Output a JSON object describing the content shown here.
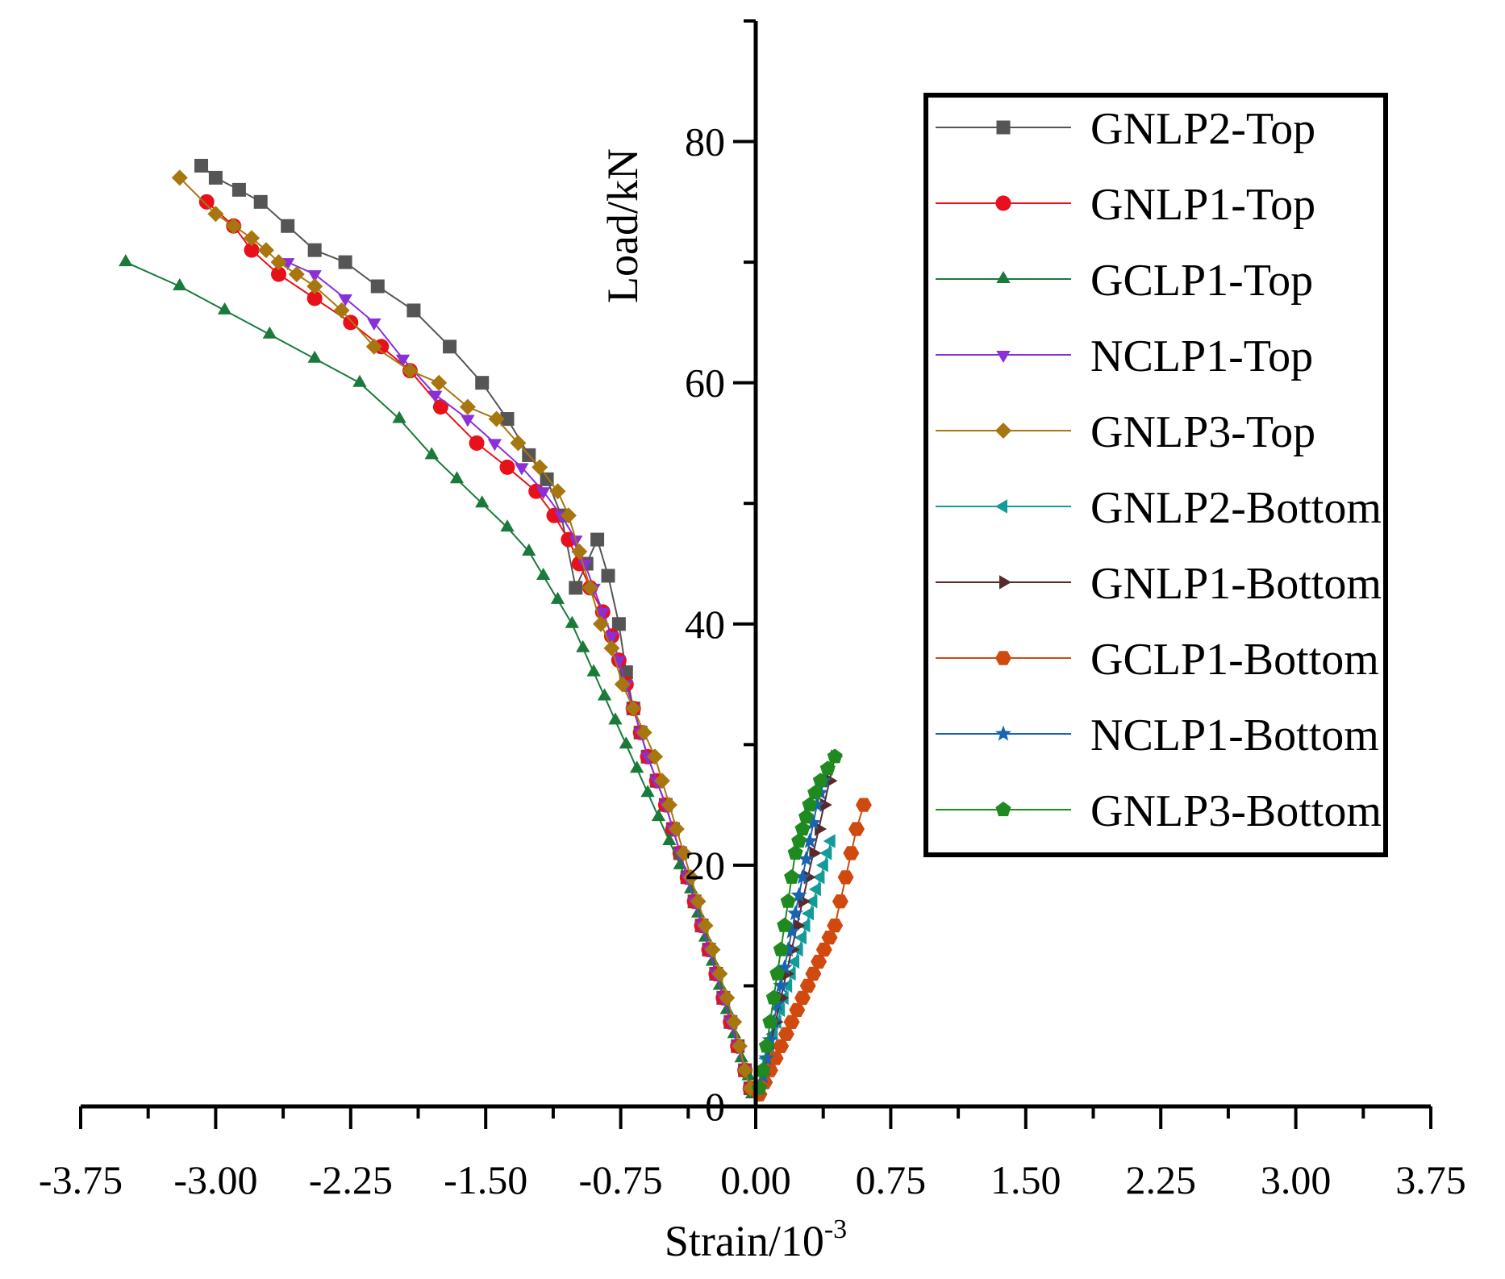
{
  "chart_data": {
    "type": "line",
    "title": "",
    "xlabel": "Strain/10",
    "xlabel_superscript": "-3",
    "ylabel": "Load/kN",
    "xlim": [
      -3.75,
      3.75
    ],
    "ylim": [
      0,
      90
    ],
    "x_ticks": [
      -3.75,
      -3.0,
      -2.25,
      -1.5,
      -0.75,
      0.0,
      0.75,
      1.5,
      2.25,
      3.0,
      3.75
    ],
    "x_tick_labels": [
      "-3.75",
      "-3.00",
      "-2.25",
      "-1.50",
      "-0.75",
      "0.00",
      "0.75",
      "1.50",
      "2.25",
      "3.00",
      "3.75"
    ],
    "y_ticks": [
      0,
      20,
      40,
      60,
      80
    ],
    "y_tick_labels": [
      "0",
      "20",
      "40",
      "60",
      "80"
    ],
    "grid": false,
    "legend_position": "top-right",
    "series": [
      {
        "name": "GNLP2-Top",
        "color": "#555555",
        "marker": "square",
        "x": [
          -0.03,
          -0.06,
          -0.1,
          -0.14,
          -0.18,
          -0.22,
          -0.26,
          -0.3,
          -0.34,
          -0.38,
          -0.42,
          -0.46,
          -0.5,
          -0.55,
          -0.6,
          -0.64,
          -0.68,
          -0.72,
          -0.76,
          -0.82,
          -0.88,
          -0.94,
          -1.0,
          -1.08,
          -1.16,
          -1.26,
          -1.38,
          -1.52,
          -1.7,
          -1.9,
          -2.1,
          -2.28,
          -2.45,
          -2.6,
          -2.75,
          -2.87,
          -3.0,
          -3.08
        ],
        "y": [
          1.5,
          3,
          5,
          7,
          9,
          11,
          13,
          15,
          17,
          19,
          21,
          23,
          25,
          27,
          29,
          31,
          33,
          36,
          40,
          44,
          47,
          45,
          43,
          49,
          52,
          54,
          57,
          60,
          63,
          66,
          68,
          70,
          71,
          73,
          75,
          76,
          77,
          78
        ]
      },
      {
        "name": "GNLP1-Top",
        "color": "#e8101a",
        "marker": "circle",
        "x": [
          -0.03,
          -0.06,
          -0.1,
          -0.14,
          -0.18,
          -0.22,
          -0.26,
          -0.3,
          -0.34,
          -0.38,
          -0.42,
          -0.46,
          -0.5,
          -0.55,
          -0.6,
          -0.64,
          -0.68,
          -0.72,
          -0.76,
          -0.8,
          -0.85,
          -0.92,
          -0.98,
          -1.04,
          -1.12,
          -1.22,
          -1.38,
          -1.55,
          -1.75,
          -1.92,
          -2.08,
          -2.25,
          -2.45,
          -2.65,
          -2.8,
          -2.9,
          -3.05
        ],
        "y": [
          1.5,
          3,
          5,
          7,
          9,
          11,
          13,
          15,
          17,
          19,
          21,
          23,
          25,
          27,
          29,
          31,
          33,
          35,
          37,
          39,
          41,
          43,
          45,
          47,
          49,
          51,
          53,
          55,
          58,
          61,
          63,
          65,
          67,
          69,
          71,
          73,
          75
        ]
      },
      {
        "name": "GCLP1-Top",
        "color": "#1a7a3a",
        "marker": "triangle-up",
        "x": [
          -0.02,
          -0.04,
          -0.08,
          -0.12,
          -0.16,
          -0.2,
          -0.24,
          -0.28,
          -0.32,
          -0.36,
          -0.42,
          -0.48,
          -0.54,
          -0.6,
          -0.66,
          -0.72,
          -0.78,
          -0.84,
          -0.9,
          -0.96,
          -1.02,
          -1.1,
          -1.18,
          -1.26,
          -1.38,
          -1.52,
          -1.66,
          -1.8,
          -1.98,
          -2.2,
          -2.45,
          -2.7,
          -2.95,
          -3.2,
          -3.5
        ],
        "y": [
          1,
          2.5,
          4,
          6,
          8,
          10,
          12,
          14,
          16,
          18,
          20,
          22,
          24,
          26,
          28,
          30,
          32,
          34,
          36,
          38,
          40,
          42,
          44,
          46,
          48,
          50,
          52,
          54,
          57,
          60,
          62,
          64,
          66,
          68,
          70
        ]
      },
      {
        "name": "NCLP1-Top",
        "color": "#8b2fd6",
        "marker": "triangle-down",
        "x": [
          -0.03,
          -0.06,
          -0.1,
          -0.14,
          -0.18,
          -0.22,
          -0.26,
          -0.3,
          -0.34,
          -0.38,
          -0.42,
          -0.46,
          -0.5,
          -0.55,
          -0.6,
          -0.64,
          -0.68,
          -0.72,
          -0.76,
          -0.8,
          -0.85,
          -0.9,
          -0.95,
          -1.0,
          -1.08,
          -1.18,
          -1.3,
          -1.45,
          -1.6,
          -1.78,
          -1.96,
          -2.12,
          -2.28,
          -2.45,
          -2.6
        ],
        "y": [
          1.5,
          3,
          5,
          7,
          9,
          11,
          13,
          15,
          17,
          19,
          21,
          23,
          25,
          27,
          29,
          31,
          33,
          35,
          37,
          39,
          41,
          43,
          45,
          47,
          49,
          51,
          53,
          55,
          57,
          59,
          62,
          65,
          67,
          69,
          70
        ]
      },
      {
        "name": "GNLP3-Top",
        "color": "#a8760f",
        "marker": "diamond",
        "x": [
          -0.03,
          -0.06,
          -0.09,
          -0.12,
          -0.16,
          -0.2,
          -0.24,
          -0.28,
          -0.32,
          -0.36,
          -0.4,
          -0.44,
          -0.48,
          -0.52,
          -0.56,
          -0.62,
          -0.68,
          -0.74,
          -0.8,
          -0.86,
          -0.92,
          -0.98,
          -1.04,
          -1.1,
          -1.2,
          -1.32,
          -1.44,
          -1.6,
          -1.76,
          -1.92,
          -2.12,
          -2.3,
          -2.45,
          -2.55,
          -2.65,
          -2.72,
          -2.8,
          -2.9,
          -3.0,
          -3.2
        ],
        "y": [
          1.5,
          3,
          5,
          7,
          9,
          11,
          13,
          15,
          17,
          19,
          21,
          23,
          25,
          27,
          29,
          31,
          33,
          35,
          38,
          40,
          43,
          46,
          49,
          51,
          53,
          55,
          57,
          58,
          60,
          61,
          63,
          66,
          68,
          69,
          70,
          71,
          72,
          73,
          74,
          77
        ]
      },
      {
        "name": "GNLP2-Bottom",
        "color": "#159a9a",
        "marker": "triangle-left",
        "x": [
          0.02,
          0.04,
          0.06,
          0.08,
          0.1,
          0.12,
          0.14,
          0.16,
          0.18,
          0.2,
          0.22,
          0.24,
          0.26,
          0.28,
          0.3,
          0.32,
          0.34,
          0.36,
          0.38,
          0.4,
          0.42
        ],
        "y": [
          1.5,
          3,
          4,
          5,
          6,
          7,
          8,
          9,
          10,
          11,
          12,
          13,
          14,
          15,
          16,
          17,
          18,
          19,
          20,
          21,
          22
        ]
      },
      {
        "name": "GNLP1-Bottom",
        "color": "#5a2a2a",
        "marker": "triangle-right",
        "x": [
          0.02,
          0.05,
          0.08,
          0.11,
          0.14,
          0.17,
          0.2,
          0.23,
          0.26,
          0.29,
          0.32,
          0.35,
          0.38,
          0.41,
          0.44
        ],
        "y": [
          1.5,
          3,
          5,
          7,
          9,
          11,
          13,
          15,
          17,
          19,
          21,
          23,
          25,
          27,
          29
        ]
      },
      {
        "name": "GCLP1-Bottom",
        "color": "#d04a10",
        "marker": "hexagon",
        "x": [
          0.02,
          0.05,
          0.08,
          0.11,
          0.14,
          0.17,
          0.2,
          0.23,
          0.26,
          0.29,
          0.32,
          0.35,
          0.38,
          0.41,
          0.44,
          0.47,
          0.5,
          0.53,
          0.56,
          0.6
        ],
        "y": [
          1,
          2,
          3,
          4,
          5,
          6,
          7,
          8,
          9,
          10,
          11,
          12,
          13,
          14,
          15,
          17,
          19,
          21,
          23,
          25
        ]
      },
      {
        "name": "NCLP1-Bottom",
        "color": "#1a63b0",
        "marker": "star",
        "x": [
          0.02,
          0.04,
          0.06,
          0.08,
          0.1,
          0.12,
          0.14,
          0.16,
          0.18,
          0.2,
          0.22,
          0.24,
          0.26,
          0.28,
          0.3,
          0.32,
          0.34,
          0.36,
          0.38,
          0.4
        ],
        "y": [
          1.5,
          2.5,
          4,
          5.5,
          7,
          8.5,
          10,
          11.5,
          13,
          14.5,
          16,
          17.5,
          19,
          20.5,
          22,
          23.5,
          25,
          26,
          27,
          28
        ]
      },
      {
        "name": "GNLP3-Bottom",
        "color": "#1f8a1f",
        "marker": "pentagon",
        "x": [
          0.02,
          0.04,
          0.06,
          0.08,
          0.1,
          0.12,
          0.14,
          0.16,
          0.18,
          0.2,
          0.22,
          0.24,
          0.26,
          0.28,
          0.3,
          0.33,
          0.36,
          0.4,
          0.44
        ],
        "y": [
          1.5,
          3,
          5,
          7,
          9,
          11,
          13,
          15,
          17,
          19,
          21,
          22,
          23,
          24,
          25,
          26,
          27,
          28,
          29
        ]
      }
    ]
  }
}
